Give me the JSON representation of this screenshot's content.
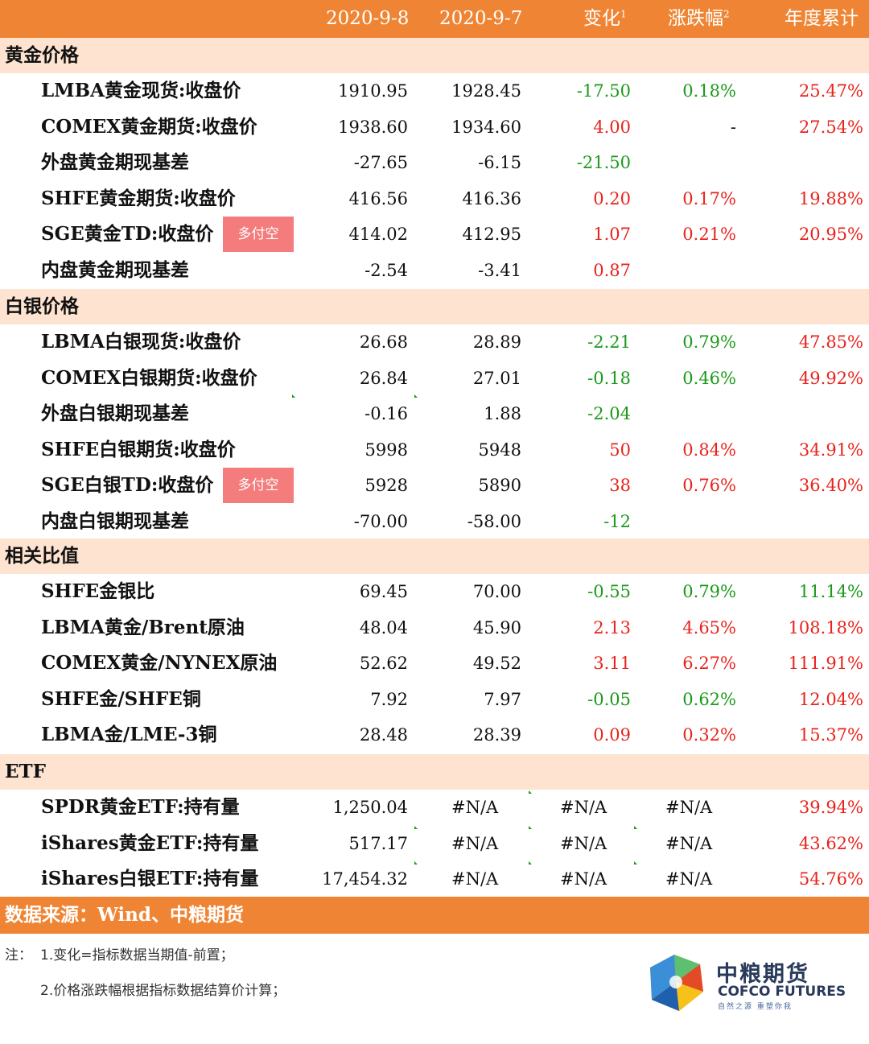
{
  "header": {
    "col1": "2020-9-8",
    "col2": "2020-9-7",
    "col3": "变化",
    "col3_sup": "1",
    "col4": "涨跌幅",
    "col4_sup": "2",
    "col5": "年度累计"
  },
  "tag_label": "多付空",
  "sections": [
    {
      "title": "黄金价格",
      "rows": [
        {
          "name": "LMBA黄金现货:收盘价",
          "v1": "1910.95",
          "v2": "1928.45",
          "chg": "-17.50",
          "pct": "0.18%",
          "ytd": "25.47%"
        },
        {
          "name": "COMEX黄金期货:收盘价",
          "v1": "1938.60",
          "v2": "1934.60",
          "chg": "4.00",
          "pct": "-",
          "ytd": "27.54%"
        },
        {
          "name": "外盘黄金期现基差",
          "v1": "-27.65",
          "v2": "-6.15",
          "chg": "-21.50",
          "pct": "",
          "ytd": ""
        },
        {
          "name": "SHFE黄金期货:收盘价",
          "v1": "416.56",
          "v2": "416.36",
          "chg": "0.20",
          "pct": "0.17%",
          "ytd": "19.88%"
        },
        {
          "name": "SGE黄金TD:收盘价",
          "v1": "414.02",
          "v2": "412.95",
          "chg": "1.07",
          "pct": "0.21%",
          "ytd": "20.95%"
        },
        {
          "name": "内盘黄金期现基差",
          "v1": "-2.54",
          "v2": "-3.41",
          "chg": "0.87",
          "pct": "",
          "ytd": ""
        }
      ]
    },
    {
      "title": "白银价格",
      "rows": [
        {
          "name": "LBMA白银现货:收盘价",
          "v1": "26.68",
          "v2": "28.89",
          "chg": "-2.21",
          "pct": "0.79%",
          "ytd": "47.85%"
        },
        {
          "name": "COMEX白银期货:收盘价",
          "v1": "26.84",
          "v2": "27.01",
          "chg": "-0.18",
          "pct": "0.46%",
          "ytd": "49.92%"
        },
        {
          "name": "外盘白银期现基差",
          "v1": "-0.16",
          "v2": "1.88",
          "chg": "-2.04",
          "pct": "",
          "ytd": ""
        },
        {
          "name": "SHFE白银期货:收盘价",
          "v1": "5998",
          "v2": "5948",
          "chg": "50",
          "pct": "0.84%",
          "ytd": "34.91%"
        },
        {
          "name": "SGE白银TD:收盘价",
          "v1": "5928",
          "v2": "5890",
          "chg": "38",
          "pct": "0.76%",
          "ytd": "36.40%"
        },
        {
          "name": "内盘白银期现基差",
          "v1": "-70.00",
          "v2": "-58.00",
          "chg": "-12",
          "pct": "",
          "ytd": ""
        }
      ]
    },
    {
      "title": "相关比值",
      "rows": [
        {
          "name": "SHFE金银比",
          "v1": "69.45",
          "v2": "70.00",
          "chg": "-0.55",
          "pct": "0.79%",
          "ytd": "11.14%"
        },
        {
          "name": "LBMA黄金/Brent原油",
          "v1": "48.04",
          "v2": "45.90",
          "chg": "2.13",
          "pct": "4.65%",
          "ytd": "108.18%"
        },
        {
          "name": "COMEX黄金/NYNEX原油",
          "v1": "52.62",
          "v2": "49.52",
          "chg": "3.11",
          "pct": "6.27%",
          "ytd": "111.91%"
        },
        {
          "name": "SHFE金/SHFE铜",
          "v1": "7.92",
          "v2": "7.97",
          "chg": "-0.05",
          "pct": "0.62%",
          "ytd": "12.04%"
        },
        {
          "name": "LBMA金/LME-3铜",
          "v1": "28.48",
          "v2": "28.39",
          "chg": "0.09",
          "pct": "0.32%",
          "ytd": "15.37%"
        }
      ]
    },
    {
      "title": "ETF",
      "rows": [
        {
          "name": "SPDR黄金ETF:持有量",
          "v1": "1,250.04",
          "v2": "#N/A",
          "chg": "#N/A",
          "pct": "#N/A",
          "ytd": "39.94%"
        },
        {
          "name": "iShares黄金ETF:持有量",
          "v1": "517.17",
          "v2": "#N/A",
          "chg": "#N/A",
          "pct": "#N/A",
          "ytd": "43.62%"
        },
        {
          "name": "iShares白银ETF:持有量",
          "v1": "17,454.32",
          "v2": "#N/A",
          "chg": "#N/A",
          "pct": "#N/A",
          "ytd": "54.76%"
        }
      ]
    }
  ],
  "source": "数据来源：Wind、中粮期货",
  "notes": {
    "prefix": "注：",
    "note1": "1.变化=指标数据当期值-前置；",
    "note2": "2.价格涨跌幅根据指标数据结算价计算；"
  },
  "logo": {
    "cn": "中粮期货",
    "en": "COFCO FUTURES",
    "slogan": "自然之源 重塑你我"
  },
  "colors": {
    "accent": "#ef8534",
    "section_bg": "#fde3d0",
    "up": "#e8231c",
    "down": "#1a9a1a",
    "tag": "#f47c7c"
  }
}
